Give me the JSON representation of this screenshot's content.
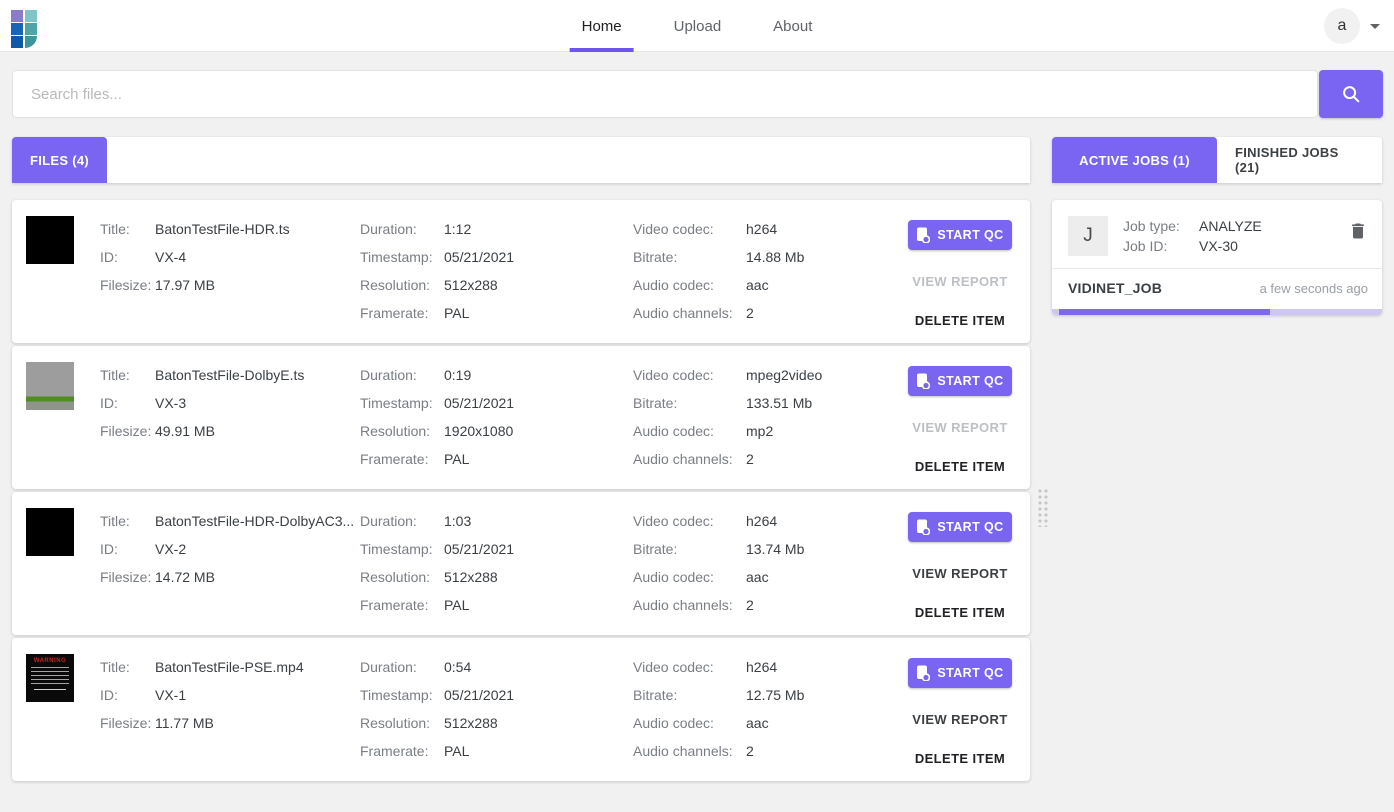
{
  "nav": {
    "tabs": [
      {
        "label": "Home",
        "active": true
      },
      {
        "label": "Upload",
        "active": false
      },
      {
        "label": "About",
        "active": false
      }
    ],
    "avatar_letter": "a"
  },
  "search": {
    "placeholder": "Search files..."
  },
  "files_panel": {
    "tab_label": "FILES (4)"
  },
  "jobs_panel": {
    "active_tab_label": "ACTIVE JOBS (1)",
    "finished_tab_label": "FINISHED JOBS (21)"
  },
  "file_card_labels": {
    "title": "Title:",
    "id": "ID:",
    "filesize": "Filesize:",
    "duration": "Duration:",
    "timestamp": "Timestamp:",
    "resolution": "Resolution:",
    "framerate": "Framerate:",
    "video_codec": "Video codec:",
    "bitrate": "Bitrate:",
    "audio_codec": "Audio codec:",
    "audio_channels": "Audio channels:"
  },
  "actions": {
    "start_qc": "START QC",
    "view_report": "VIEW REPORT",
    "delete_item": "DELETE ITEM"
  },
  "warning_thumb_text": "WARNING",
  "files": [
    {
      "title": "BatonTestFile-HDR.ts",
      "id": "VX-4",
      "filesize": "17.97 MB",
      "duration": "1:12",
      "timestamp": "05/21/2021",
      "resolution": "512x288",
      "framerate": "PAL",
      "video_codec": "h264",
      "bitrate": "14.88 Mb",
      "audio_codec": "aac",
      "audio_channels": "2",
      "thumb": "black",
      "view_report_enabled": false
    },
    {
      "title": "BatonTestFile-DolbyE.ts",
      "id": "VX-3",
      "filesize": "49.91 MB",
      "duration": "0:19",
      "timestamp": "05/21/2021",
      "resolution": "1920x1080",
      "framerate": "PAL",
      "video_codec": "mpeg2video",
      "bitrate": "133.51 Mb",
      "audio_codec": "mp2",
      "audio_channels": "2",
      "thumb": "gray-green",
      "view_report_enabled": false
    },
    {
      "title": "BatonTestFile-HDR-DolbyAC3...",
      "id": "VX-2",
      "filesize": "14.72 MB",
      "duration": "1:03",
      "timestamp": "05/21/2021",
      "resolution": "512x288",
      "framerate": "PAL",
      "video_codec": "h264",
      "bitrate": "13.74 Mb",
      "audio_codec": "aac",
      "audio_channels": "2",
      "thumb": "black",
      "view_report_enabled": true
    },
    {
      "title": "BatonTestFile-PSE.mp4",
      "id": "VX-1",
      "filesize": "11.77 MB",
      "duration": "0:54",
      "timestamp": "05/21/2021",
      "resolution": "512x288",
      "framerate": "PAL",
      "video_codec": "h264",
      "bitrate": "12.75 Mb",
      "audio_codec": "aac",
      "audio_channels": "2",
      "thumb": "warning",
      "view_report_enabled": true
    }
  ],
  "job": {
    "avatar_letter": "J",
    "type_label": "Job type:",
    "id_label": "Job ID:",
    "type": "ANALYZE",
    "id": "VX-30",
    "name": "VIDINET_JOB",
    "time_ago": "a few seconds ago",
    "progress_percent": 64
  },
  "colors": {
    "accent_purple": "#7a64f2",
    "nav_underline": "#6d54ea",
    "progress_fill": "#7f68ea",
    "progress_track": "#cfc6f4",
    "warning_red": "#c0261f"
  }
}
